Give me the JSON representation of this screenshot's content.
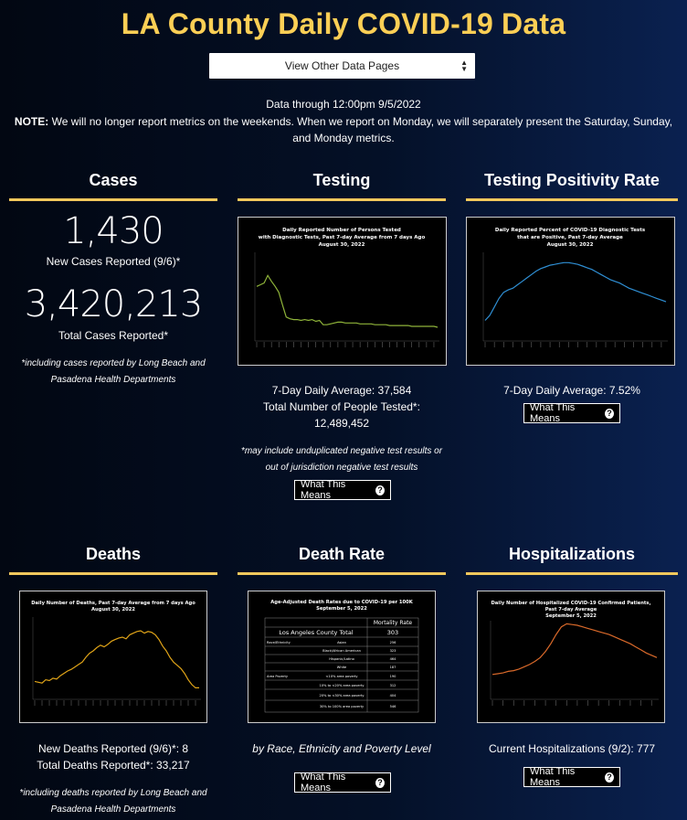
{
  "page": {
    "title": "LA County Daily COVID-19 Data",
    "select_label": "View Other Data Pages",
    "date_line": "Data through 12:00pm 9/5/2022",
    "note_label": "NOTE:",
    "note_text": "We will no longer report metrics on the weekends. When we report on Monday, we will separately present the Saturday, Sunday, and Monday metrics."
  },
  "cases": {
    "title": "Cases",
    "new_value": "1,430",
    "new_label": "New Cases Reported (9/6)*",
    "total_value": "3,420,213",
    "total_label": "Total Cases Reported*",
    "footnote": "*including cases reported by Long Beach and Pasadena Health Departments"
  },
  "testing": {
    "title": "Testing",
    "chart_title_1": "Daily Reported Number of Persons Tested",
    "chart_title_2": "with Diagnostic Tests, Past 7-day Average from 7 days Ago",
    "chart_title_3": "August 30, 2022",
    "avg_line": "7-Day Daily Average: 37,584",
    "total_label": "Total Number of People Tested*:",
    "total_value": "12,489,452",
    "footnote": "*may include unduplicated negative test results or out of jurisdiction negative test results",
    "button": "What This Means"
  },
  "positivity": {
    "title": "Testing Positivity Rate",
    "chart_title_1": "Daily Reported Percent of COVID-19 Diagnostic Tests",
    "chart_title_2": "that are Positive, Past 7-day Average",
    "chart_title_3": "August 30, 2022",
    "avg_line": "7-Day Daily Average: 7.52%",
    "button": "What This Means"
  },
  "deaths": {
    "title": "Deaths",
    "chart_title_1": "Daily Number of Deaths, Past 7-day Average from 7 days Ago",
    "chart_title_2": "August 30, 2022",
    "new_line": "New Deaths Reported (9/6)*: 8",
    "total_line": "Total Deaths Reported*: 33,217",
    "footnote": "*including deaths reported by Long Beach and Pasadena Health Departments"
  },
  "death_rate": {
    "title": "Death Rate",
    "chart_title_1": "Age-Adjusted Death Rates due to COVID-19 per 100K",
    "chart_title_2": "September 5, 2022",
    "table_header": "Mortality Rate",
    "county_label": "Los Angeles County Total",
    "county_value": "303",
    "group1_label": "Race/Ethnicity",
    "group2_label": "Area Poverty",
    "rows": [
      {
        "label": "Asian",
        "value": "256"
      },
      {
        "label": "Black/African American",
        "value": "323"
      },
      {
        "label": "Hispanic/Latino",
        "value": "464"
      },
      {
        "label": "White",
        "value": "187"
      },
      {
        "label": "<10% area poverty",
        "value": "190"
      },
      {
        "label": "10% to <20% area poverty",
        "value": "312"
      },
      {
        "label": "20% to <30% area poverty",
        "value": "404"
      },
      {
        "label": "30% to 100% area poverty",
        "value": "546"
      }
    ],
    "caption": "by Race, Ethnicity and Poverty Level",
    "button": "What This Means"
  },
  "hospitalizations": {
    "title": "Hospitalizations",
    "chart_title_1": "Daily Number of Hospitalized COVID-19 Confirmed Patients,",
    "chart_title_2": "Past 7-day Average",
    "chart_title_3": "September 5, 2022",
    "current_line": "Current Hospitalizations (9/2): 777",
    "button": "What This Means"
  },
  "chart_data": [
    {
      "type": "line",
      "color": "#8fb43a",
      "values": [
        62,
        64,
        66,
        75,
        68,
        62,
        55,
        40,
        26,
        24,
        23,
        23,
        22,
        23,
        22,
        23,
        21,
        22,
        17,
        17,
        18,
        19,
        20,
        20,
        19,
        19,
        19,
        19,
        18,
        18,
        18,
        18,
        17,
        17,
        17,
        17,
        16,
        16,
        16,
        16,
        16,
        16,
        15,
        15,
        15,
        15,
        15,
        15,
        15,
        14
      ]
    },
    {
      "type": "line",
      "color": "#2f8fd4",
      "values": [
        22,
        28,
        38,
        48,
        55,
        58,
        60,
        64,
        68,
        72,
        76,
        80,
        83,
        85,
        87,
        88,
        89,
        90,
        90,
        89,
        88,
        86,
        84,
        82,
        79,
        76,
        73,
        70,
        68,
        66,
        63,
        60,
        58,
        56,
        54,
        52,
        50,
        48,
        46,
        44
      ]
    },
    {
      "type": "line",
      "color": "#e0a418",
      "values": [
        20,
        19,
        18,
        22,
        21,
        24,
        23,
        27,
        30,
        33,
        35,
        38,
        41,
        44,
        50,
        55,
        58,
        62,
        65,
        63,
        66,
        70,
        72,
        74,
        75,
        73,
        78,
        80,
        82,
        83,
        80,
        82,
        81,
        78,
        72,
        64,
        58,
        50,
        44,
        40,
        36,
        30,
        22,
        16,
        12,
        12
      ]
    },
    {
      "type": "line",
      "color": "#d9692a",
      "values": [
        30,
        31,
        32,
        34,
        35,
        37,
        40,
        43,
        47,
        52,
        60,
        70,
        82,
        92,
        96,
        95,
        94,
        92,
        90,
        88,
        86,
        84,
        82,
        79,
        76,
        73,
        70,
        66,
        62,
        58,
        55,
        52
      ]
    }
  ]
}
